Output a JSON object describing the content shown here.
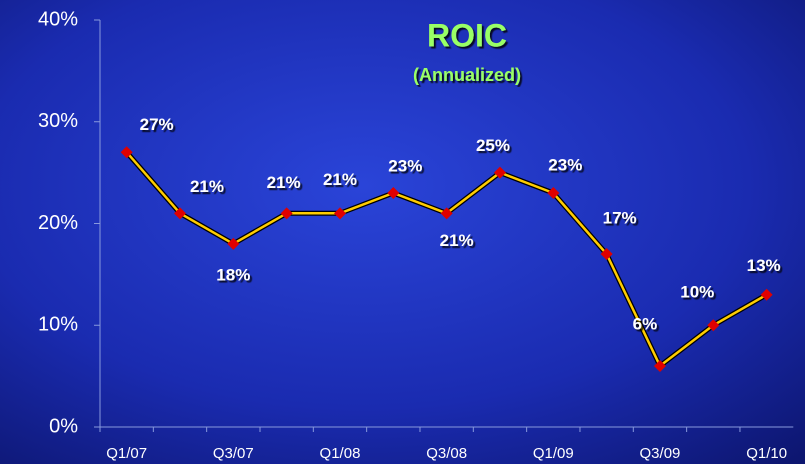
{
  "chart_data": {
    "type": "line",
    "title": "ROIC",
    "subtitle": "(Annualized)",
    "categories": [
      "Q1/07",
      null,
      "Q3/07",
      null,
      "Q1/08",
      null,
      "Q3/08",
      null,
      "Q1/09",
      null,
      "Q3/09",
      null,
      "Q1/10"
    ],
    "series": [
      {
        "name": "ROIC",
        "color": "#ffcc00",
        "marker_color": "#e00000",
        "values": [
          27,
          21,
          18,
          21,
          21,
          23,
          21,
          25,
          23,
          17,
          6,
          10,
          13
        ],
        "value_labels": [
          "27%",
          "21%",
          "18%",
          "21%",
          "21%",
          "23%",
          "21%",
          "25%",
          "23%",
          "17%",
          "6%",
          "10%",
          "13%"
        ]
      }
    ],
    "ylim": [
      0,
      40
    ],
    "yticks": [
      {
        "value": 0,
        "label": "0%"
      },
      {
        "value": 10,
        "label": "10%"
      },
      {
        "value": 20,
        "label": "20%"
      },
      {
        "value": 30,
        "label": "30%"
      },
      {
        "value": 40,
        "label": "40%"
      }
    ]
  }
}
